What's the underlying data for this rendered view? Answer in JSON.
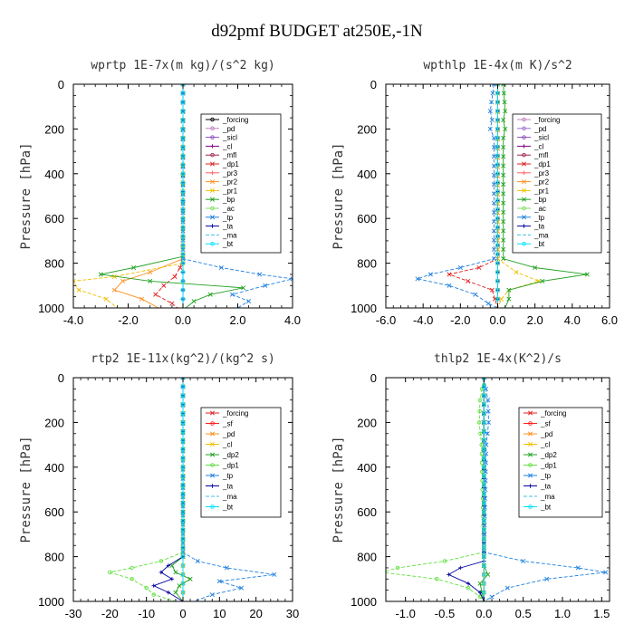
{
  "figure_title": "d92pmf  BUDGET at250E,-1N",
  "chart_data": [
    {
      "type": "line",
      "title": "wprtp  1E-7x(m kg)/(s^2 kg)",
      "ylabel": "Pressure [hPa]",
      "xlim": [
        -4,
        4
      ],
      "ylim": [
        1000,
        0
      ],
      "xticks": [
        -4.0,
        -2.0,
        0.0,
        2.0,
        4.0
      ],
      "xtick_labels": [
        "-4.0",
        "-2.0",
        "0.0",
        "2.0",
        "4.0"
      ],
      "yticks": [
        0,
        200,
        400,
        600,
        800,
        1000
      ],
      "legend_position": "top-right",
      "series": [
        {
          "name": "_forcing",
          "color": "#000000",
          "marker": "o",
          "y": [
            0,
            1000
          ],
          "x": [
            0,
            0
          ]
        },
        {
          "name": "_pd",
          "color": "#c080c0",
          "marker": "o",
          "y": [
            0,
            1000
          ],
          "x": [
            0,
            0
          ]
        },
        {
          "name": "_sicl",
          "color": "#8a4fc0",
          "marker": "o",
          "y": [
            0,
            1000
          ],
          "x": [
            0,
            0
          ]
        },
        {
          "name": "_cl",
          "color": "#800080",
          "marker": "+",
          "y": [
            0,
            1000
          ],
          "x": [
            0,
            0
          ]
        },
        {
          "name": "_mfl",
          "color": "#a02050",
          "marker": "o",
          "y": [
            0,
            1000
          ],
          "x": [
            0,
            0
          ]
        },
        {
          "name": "_dp1",
          "color": "#e02020",
          "marker": "x",
          "y": [
            0,
            760,
            820,
            860,
            900,
            940,
            980,
            1000
          ],
          "x": [
            0,
            0,
            -0.1,
            -0.3,
            -0.7,
            -1.0,
            -0.4,
            -0.2
          ]
        },
        {
          "name": "_pr3",
          "color": "#ff6060",
          "marker": "+",
          "y": [
            0,
            1000
          ],
          "x": [
            0,
            0
          ]
        },
        {
          "name": "_pr2",
          "color": "#ff9020",
          "marker": "x",
          "y": [
            0,
            780,
            840,
            880,
            920,
            960,
            1000
          ],
          "x": [
            0,
            0,
            -1.2,
            -2.2,
            -2.5,
            -1.5,
            -0.9
          ]
        },
        {
          "name": "_pr1",
          "color": "#f0c000",
          "marker": "x",
          "y": [
            0,
            800,
            860,
            880,
            920,
            960,
            1000
          ],
          "x": [
            0,
            0,
            -2.5,
            -4.0,
            -3.8,
            -2.8,
            -2.4
          ]
        },
        {
          "name": "_bp",
          "color": "#20a020",
          "marker": "x",
          "y": [
            0,
            770,
            820,
            850,
            880,
            910,
            940,
            970,
            1000
          ],
          "x": [
            0,
            0,
            -1.8,
            -3.0,
            -1.2,
            2.2,
            1.0,
            0.4,
            0.1
          ]
        },
        {
          "name": "_ac",
          "color": "#80e060",
          "marker": "o",
          "y": [
            0,
            1000
          ],
          "x": [
            0,
            0
          ]
        },
        {
          "name": "_tp",
          "color": "#2080e0",
          "marker": "x",
          "y": [
            0,
            780,
            820,
            850,
            870,
            900,
            940,
            970,
            1000
          ],
          "x": [
            0,
            0,
            1.4,
            2.8,
            4.0,
            3.0,
            1.8,
            2.4,
            2.0
          ]
        },
        {
          "name": "_ta",
          "color": "#0000a0",
          "marker": "+",
          "y": [
            0,
            1000
          ],
          "x": [
            0,
            0
          ]
        },
        {
          "name": "_ma",
          "color": "#40c0e0",
          "marker": "-",
          "y": [
            0,
            1000
          ],
          "x": [
            0,
            0
          ]
        },
        {
          "name": "_bt",
          "color": "#00e0ff",
          "marker": "o",
          "y": [
            0,
            1000
          ],
          "x": [
            0,
            0
          ]
        }
      ]
    },
    {
      "type": "line",
      "title": "wpthlp  1E-4x(m K)/s^2",
      "ylabel": "Pressure [hPa]",
      "xlim": [
        -6,
        6
      ],
      "ylim": [
        1000,
        0
      ],
      "xticks": [
        -6.0,
        -4.0,
        -2.0,
        0.0,
        2.0,
        4.0,
        6.0
      ],
      "xtick_labels": [
        "-6.0",
        "-4.0",
        "-2.0",
        "0.0",
        "2.0",
        "4.0",
        "6.0"
      ],
      "yticks": [
        0,
        200,
        400,
        600,
        800,
        1000
      ],
      "legend_position": "top-right",
      "series": [
        {
          "name": "_forcing",
          "color": "#c080c0",
          "marker": "o",
          "y": [
            0,
            1000
          ],
          "x": [
            0,
            0
          ]
        },
        {
          "name": "_pd",
          "color": "#a070d0",
          "marker": "o",
          "y": [
            0,
            1000
          ],
          "x": [
            0,
            0
          ]
        },
        {
          "name": "_sicl",
          "color": "#8a4fc0",
          "marker": "o",
          "y": [
            0,
            1000
          ],
          "x": [
            0,
            0
          ]
        },
        {
          "name": "_cl",
          "color": "#800080",
          "marker": "+",
          "y": [
            0,
            1000
          ],
          "x": [
            0,
            0
          ]
        },
        {
          "name": "_mfl",
          "color": "#a02050",
          "marker": "o",
          "y": [
            0,
            1000
          ],
          "x": [
            0,
            0
          ]
        },
        {
          "name": "_dp1",
          "color": "#e02020",
          "marker": "x",
          "y": [
            0,
            780,
            820,
            850,
            880,
            920,
            1000
          ],
          "x": [
            0,
            0,
            -1.0,
            -2.6,
            -1.6,
            -0.3,
            0
          ]
        },
        {
          "name": "_pr3",
          "color": "#ff6060",
          "marker": "+",
          "y": [
            0,
            1000
          ],
          "x": [
            0,
            0
          ]
        },
        {
          "name": "_pr2",
          "color": "#ff9020",
          "marker": "x",
          "y": [
            0,
            1000
          ],
          "x": [
            0,
            0
          ]
        },
        {
          "name": "_pr1",
          "color": "#f0c000",
          "marker": "x",
          "y": [
            0,
            780,
            840,
            880,
            920,
            960,
            1000
          ],
          "x": [
            0,
            0,
            1.0,
            2.2,
            0.6,
            0.2,
            0
          ]
        },
        {
          "name": "_bp",
          "color": "#20a020",
          "marker": "x",
          "y": [
            0,
            120,
            160,
            200,
            240,
            780,
            820,
            850,
            880,
            920,
            960,
            1000
          ],
          "x": [
            0.3,
            0.4,
            0.3,
            0.4,
            0.3,
            0.3,
            2.0,
            4.8,
            2.4,
            0.6,
            0.6,
            0.4
          ]
        },
        {
          "name": "_ac",
          "color": "#80e060",
          "marker": "o",
          "y": [
            0,
            1000
          ],
          "x": [
            0,
            0
          ]
        },
        {
          "name": "_tp",
          "color": "#2080e0",
          "marker": "x",
          "y": [
            0,
            120,
            160,
            200,
            240,
            780,
            820,
            850,
            870,
            900,
            940,
            980,
            1000
          ],
          "x": [
            -0.2,
            -0.4,
            -0.3,
            -0.4,
            -0.2,
            -0.2,
            -2.0,
            -3.6,
            -4.3,
            -2.6,
            -1.2,
            -0.5,
            0
          ]
        },
        {
          "name": "_ta",
          "color": "#0000a0",
          "marker": "+",
          "y": [
            0,
            1000
          ],
          "x": [
            0,
            0
          ]
        },
        {
          "name": "_ma",
          "color": "#40c0e0",
          "marker": "-",
          "y": [
            0,
            1000
          ],
          "x": [
            0,
            0
          ]
        },
        {
          "name": "_bt",
          "color": "#00e0ff",
          "marker": "o",
          "y": [
            0,
            1000
          ],
          "x": [
            0,
            0
          ]
        }
      ]
    },
    {
      "type": "line",
      "title": "rtp2  1E-11x(kg^2)/(kg^2 s)",
      "ylabel": "Pressure [hPa]",
      "xlim": [
        -30,
        30
      ],
      "ylim": [
        1000,
        0
      ],
      "xticks": [
        -30,
        -20,
        -10,
        0,
        10,
        20,
        30
      ],
      "xtick_labels": [
        "-30",
        "-20",
        "-10",
        "0",
        "10",
        "20",
        "30"
      ],
      "yticks": [
        0,
        200,
        400,
        600,
        800,
        1000
      ],
      "legend_position": "top-right",
      "series": [
        {
          "name": "_forcing",
          "color": "#e02020",
          "marker": "x",
          "y": [
            0,
            1000
          ],
          "x": [
            0,
            0
          ]
        },
        {
          "name": "_sf",
          "color": "#ff2020",
          "marker": "o",
          "y": [
            0,
            1000
          ],
          "x": [
            0,
            0
          ]
        },
        {
          "name": "_pd",
          "color": "#ff9020",
          "marker": "x",
          "y": [
            0,
            1000
          ],
          "x": [
            0,
            0
          ]
        },
        {
          "name": "_cl",
          "color": "#f0c000",
          "marker": "x",
          "y": [
            0,
            1000
          ],
          "x": [
            0,
            0
          ]
        },
        {
          "name": "_dp2",
          "color": "#20a020",
          "marker": "x",
          "y": [
            0,
            800,
            840,
            870,
            900,
            930,
            960,
            1000
          ],
          "x": [
            0,
            0,
            -3,
            -2,
            2,
            -1,
            -2,
            0
          ]
        },
        {
          "name": "_dp1",
          "color": "#60e040",
          "marker": "o",
          "y": [
            0,
            780,
            820,
            850,
            870,
            900,
            940,
            970,
            1000
          ],
          "x": [
            0,
            0,
            -6,
            -14,
            -20,
            -14,
            -10,
            -8,
            -2
          ]
        },
        {
          "name": "_tp",
          "color": "#2080e0",
          "marker": "x",
          "y": [
            0,
            780,
            820,
            850,
            880,
            910,
            940,
            970,
            1000
          ],
          "x": [
            0,
            0,
            4,
            12,
            25,
            10,
            16,
            8,
            3
          ]
        },
        {
          "name": "_ta",
          "color": "#0000a0",
          "marker": "+",
          "y": [
            0,
            800,
            840,
            870,
            900,
            930,
            960,
            1000
          ],
          "x": [
            0,
            0,
            -4,
            -6,
            -3,
            -8,
            -4,
            0
          ]
        },
        {
          "name": "_ma",
          "color": "#40c0e0",
          "marker": "-",
          "y": [
            0,
            1000
          ],
          "x": [
            0,
            0
          ]
        },
        {
          "name": "_bt",
          "color": "#00e0ff",
          "marker": "o",
          "y": [
            0,
            1000
          ],
          "x": [
            0,
            0
          ]
        }
      ]
    },
    {
      "type": "line",
      "title": "thlp2  1E-4x(K^2)/s",
      "ylabel": "Pressure [hPa]",
      "xlim": [
        -1.25,
        1.6
      ],
      "ylim": [
        1000,
        0
      ],
      "xticks": [
        -1.0,
        -0.5,
        0.0,
        0.5,
        1.0,
        1.5
      ],
      "xtick_labels": [
        "-1.0",
        "-0.5",
        "0.0",
        "0.5",
        "1.0",
        "1.5"
      ],
      "yticks": [
        0,
        200,
        400,
        600,
        800,
        1000
      ],
      "legend_position": "top-right",
      "series": [
        {
          "name": "_forcing",
          "color": "#e02020",
          "marker": "x",
          "y": [
            0,
            1000
          ],
          "x": [
            0,
            0
          ]
        },
        {
          "name": "_sf",
          "color": "#ff2020",
          "marker": "o",
          "y": [
            0,
            1000
          ],
          "x": [
            0,
            0
          ]
        },
        {
          "name": "_pd",
          "color": "#ff9020",
          "marker": "x",
          "y": [
            0,
            1000
          ],
          "x": [
            0,
            0
          ]
        },
        {
          "name": "_cl",
          "color": "#f0c000",
          "marker": "x",
          "y": [
            0,
            1000
          ],
          "x": [
            0,
            0
          ]
        },
        {
          "name": "_dp2",
          "color": "#20a020",
          "marker": "x",
          "y": [
            0,
            840,
            880,
            920,
            1000
          ],
          "x": [
            0,
            0,
            0.05,
            -0.05,
            0
          ]
        },
        {
          "name": "_dp1",
          "color": "#60e040",
          "marker": "o",
          "y": [
            0,
            100,
            200,
            300,
            780,
            820,
            850,
            870,
            900,
            940,
            980,
            1000
          ],
          "x": [
            0,
            -0.05,
            -0.06,
            -0.03,
            0,
            -0.5,
            -1.1,
            -1.3,
            -0.6,
            -0.2,
            -0.05,
            0
          ]
        },
        {
          "name": "_tp",
          "color": "#2080e0",
          "marker": "x",
          "y": [
            0,
            100,
            200,
            300,
            780,
            820,
            850,
            870,
            900,
            940,
            980,
            1000
          ],
          "x": [
            0,
            0.05,
            0.06,
            0.03,
            0,
            0.5,
            1.2,
            1.55,
            0.8,
            0.3,
            0.1,
            0
          ]
        },
        {
          "name": "_ta",
          "color": "#0000a0",
          "marker": "+",
          "y": [
            0,
            820,
            850,
            880,
            920,
            960,
            1000
          ],
          "x": [
            0,
            0,
            -0.3,
            -0.45,
            -0.2,
            -0.05,
            0
          ]
        },
        {
          "name": "_ma",
          "color": "#40c0e0",
          "marker": "-",
          "y": [
            0,
            1000
          ],
          "x": [
            0,
            0
          ]
        },
        {
          "name": "_bt",
          "color": "#00e0ff",
          "marker": "o",
          "y": [
            0,
            1000
          ],
          "x": [
            0,
            0
          ]
        }
      ]
    }
  ]
}
